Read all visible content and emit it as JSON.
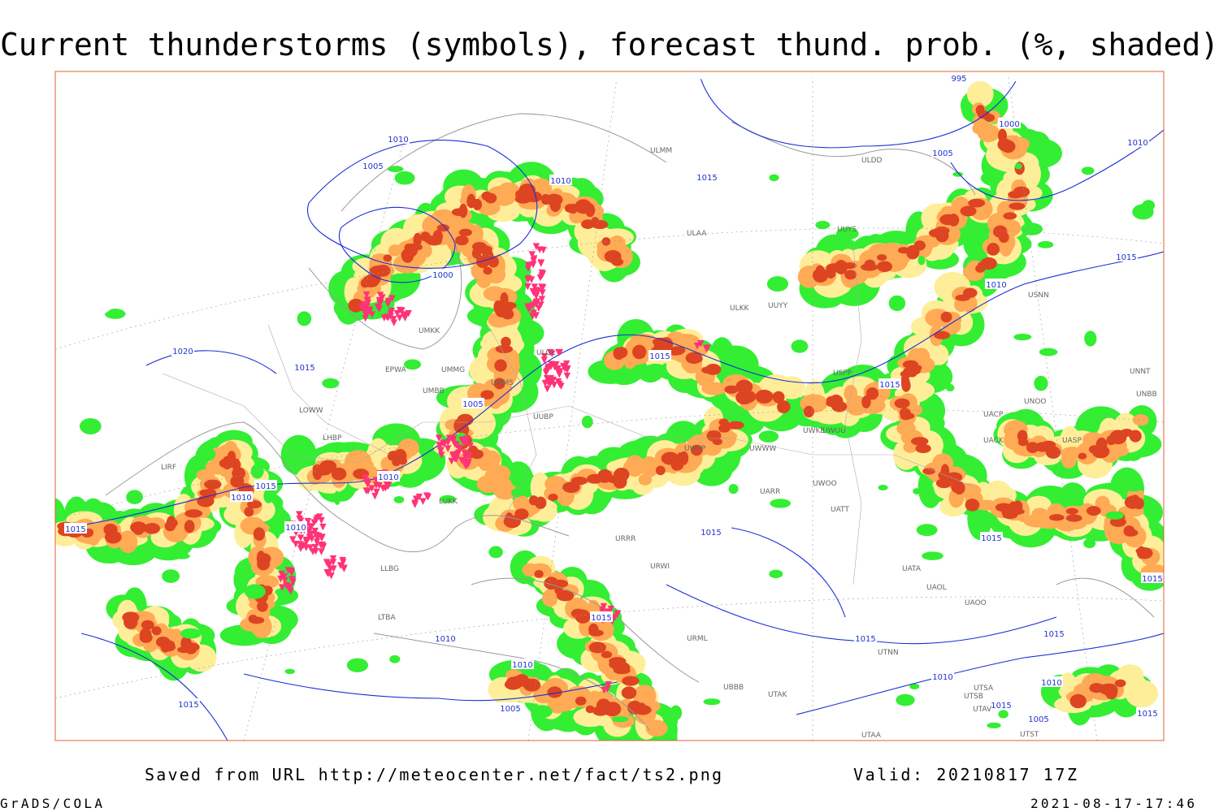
{
  "title": "Current thunderstorms (symbols), forecast thund. prob. (%, shaded)",
  "footer": {
    "saved": "Saved from URL http://meteocenter.net/fact/ts2.png",
    "valid": "Valid: 20210817 17Z",
    "software": "GrADS/COLA",
    "timestamp": "2021-08-17-17:46"
  },
  "isobar_labels": [
    "1010",
    "1005",
    "1000",
    "1010",
    "1015",
    "1020",
    "1015",
    "1005",
    "1010",
    "1015",
    "1010",
    "1010",
    "1015",
    "1015",
    "1015",
    "1015",
    "1015",
    "1010",
    "1010",
    "1005",
    "995",
    "1000",
    "1005",
    "1010",
    "1015",
    "1010",
    "1015",
    "1015",
    "1015",
    "1015",
    "1010",
    "1015",
    "1015",
    "1010",
    "1005",
    "1015"
  ],
  "station_labels": [
    "UMKK",
    "UMMG",
    "UMBB",
    "EPWA",
    "LOWW",
    "LHBP",
    "LIRF",
    "LUKK",
    "ULOL",
    "UUBP",
    "UMMS",
    "ULAA",
    "ULMM",
    "ULDD",
    "UUYS",
    "ULKK",
    "UUYY",
    "USPP",
    "UWKE",
    "UWUU",
    "UWWW",
    "UWPP",
    "UWOO",
    "UARR",
    "UATT",
    "UACK",
    "UACP",
    "UASP",
    "UNOO",
    "UNNT",
    "UNBB",
    "USNN",
    "URRR",
    "URWI",
    "URML",
    "UBBB",
    "UTAK",
    "UTAA",
    "UTNN",
    "UAOL",
    "UAOO",
    "UATA",
    "UTSA",
    "UTSB",
    "UTAV",
    "LLBG",
    "LTBA",
    "UTST"
  ]
}
